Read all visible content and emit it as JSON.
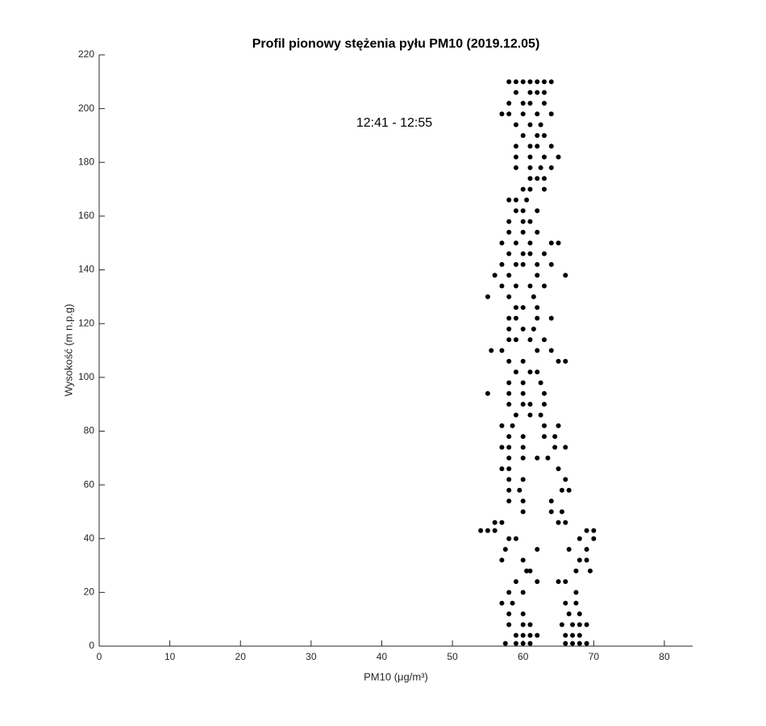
{
  "chart_data": {
    "type": "scatter",
    "title": "Profil pionowy stężenia pyłu PM10 (2019.12.05)",
    "annotation": "12:41 - 12:55",
    "x_label": "PM10 (μg/m³)",
    "y_label": "Wysokość (m n.p.g)",
    "color": "#000000",
    "xlim": [
      0,
      84
    ],
    "ylim": [
      0,
      220
    ],
    "xticks": [
      0,
      10,
      20,
      30,
      40,
      50,
      60,
      70,
      80
    ],
    "yticks": [
      0,
      20,
      40,
      60,
      80,
      100,
      120,
      140,
      160,
      180,
      200,
      220
    ],
    "x": [
      57.5,
      59,
      60,
      61,
      66,
      67,
      68,
      69,
      59,
      60,
      61,
      62,
      66,
      67,
      68,
      58,
      60,
      61,
      65.5,
      67,
      68,
      69,
      58,
      60,
      66.5,
      68,
      57,
      58.5,
      66,
      67.5,
      58,
      60,
      67.5,
      59,
      62,
      65,
      66,
      60.5,
      61,
      67.5,
      69.5,
      57,
      60,
      68,
      69,
      57.5,
      62,
      66.5,
      69,
      58,
      59,
      68,
      70,
      54,
      55,
      56,
      69,
      70,
      56,
      57,
      65,
      66,
      60,
      64,
      65.5,
      58,
      60,
      64,
      58,
      59.5,
      65.5,
      66.5,
      58,
      60,
      66,
      57,
      58,
      65,
      58,
      60,
      62,
      63.5,
      57,
      58,
      60,
      64.5,
      66,
      58,
      60,
      63,
      64.5,
      57,
      58.5,
      63,
      65,
      59,
      61,
      62.5,
      58,
      60,
      61,
      63,
      55,
      58,
      60,
      63,
      58,
      60,
      62.5,
      59,
      61,
      62,
      58,
      60,
      65,
      66,
      55.5,
      57,
      62,
      64,
      58,
      59,
      61,
      63,
      58,
      60,
      61.5,
      58,
      59,
      62,
      64,
      59,
      60,
      62,
      55,
      58,
      61.5,
      57,
      59,
      61,
      63,
      56,
      58,
      62,
      66,
      57,
      59,
      60,
      62,
      64,
      58,
      60,
      61,
      63,
      57,
      59,
      61,
      64,
      65,
      58,
      60,
      62,
      58,
      60,
      61,
      59,
      60,
      62,
      58,
      59,
      60.5,
      60,
      61,
      63,
      61,
      62,
      63,
      59,
      61,
      62.5,
      64,
      59,
      61,
      63,
      65,
      59,
      61,
      62,
      64,
      60,
      62,
      63,
      59,
      61,
      62.5,
      57,
      58,
      60,
      62,
      64,
      58,
      60,
      61,
      63,
      59,
      61,
      62,
      63,
      58,
      59,
      60,
      61,
      62,
      63,
      64
    ],
    "values": [
      1,
      1,
      1,
      1,
      1,
      1,
      1,
      1,
      4,
      4,
      4,
      4,
      4,
      4,
      4,
      8,
      8,
      8,
      8,
      8,
      8,
      8,
      12,
      12,
      12,
      12,
      16,
      16,
      16,
      16,
      20,
      20,
      20,
      24,
      24,
      24,
      24,
      28,
      28,
      28,
      28,
      32,
      32,
      32,
      32,
      36,
      36,
      36,
      36,
      40,
      40,
      40,
      40,
      43,
      43,
      43,
      43,
      43,
      46,
      46,
      46,
      46,
      50,
      50,
      50,
      54,
      54,
      54,
      58,
      58,
      58,
      58,
      62,
      62,
      62,
      66,
      66,
      66,
      70,
      70,
      70,
      70,
      74,
      74,
      74,
      74,
      74,
      78,
      78,
      78,
      78,
      82,
      82,
      82,
      82,
      86,
      86,
      86,
      90,
      90,
      90,
      90,
      94,
      94,
      94,
      94,
      98,
      98,
      98,
      102,
      102,
      102,
      106,
      106,
      106,
      106,
      110,
      110,
      110,
      110,
      114,
      114,
      114,
      114,
      118,
      118,
      118,
      122,
      122,
      122,
      122,
      126,
      126,
      126,
      130,
      130,
      130,
      134,
      134,
      134,
      134,
      138,
      138,
      138,
      138,
      142,
      142,
      142,
      142,
      142,
      146,
      146,
      146,
      146,
      150,
      150,
      150,
      150,
      150,
      154,
      154,
      154,
      158,
      158,
      158,
      162,
      162,
      162,
      166,
      166,
      166,
      170,
      170,
      170,
      174,
      174,
      174,
      178,
      178,
      178,
      178,
      182,
      182,
      182,
      182,
      186,
      186,
      186,
      186,
      190,
      190,
      190,
      194,
      194,
      194,
      198,
      198,
      198,
      198,
      198,
      202,
      202,
      202,
      202,
      206,
      206,
      206,
      206,
      210,
      210,
      210,
      210,
      210,
      210,
      210
    ]
  }
}
